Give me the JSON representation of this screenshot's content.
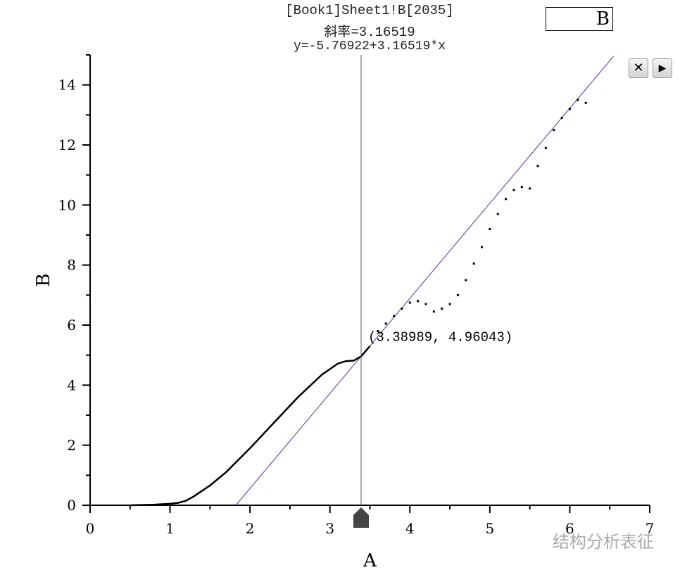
{
  "header": {
    "source": "[Book1]Sheet1!B[2035]",
    "slope": "斜率=3.16519",
    "equation": "y=-5.76922+3.16519*x"
  },
  "legend": {
    "label": "B"
  },
  "buttons": {
    "close": "✕",
    "next": "▶"
  },
  "cursor": {
    "x": 3.38989,
    "y": 4.96043,
    "label": "(3.38989, 4.96043)"
  },
  "watermark": "结构分析表征",
  "colors": {
    "data": "#000000",
    "fit_line": "#5a2d9c",
    "cursor": "#555555"
  },
  "chart_data": {
    "type": "line",
    "xlabel": "A",
    "ylabel": "B",
    "xlim": [
      0,
      7
    ],
    "ylim": [
      0,
      15
    ],
    "xticks": [
      0,
      1,
      2,
      3,
      4,
      5,
      6,
      7
    ],
    "yticks": [
      0,
      2,
      4,
      6,
      8,
      10,
      12,
      14
    ],
    "grid": false,
    "legend": "top-right",
    "series": [
      {
        "name": "B",
        "style": "solid",
        "x": [
          0.5,
          0.8,
          1.0,
          1.1,
          1.2,
          1.3,
          1.5,
          1.7,
          2.0,
          2.3,
          2.6,
          2.9,
          3.1,
          3.2,
          3.3,
          3.39,
          3.5
        ],
        "y": [
          0.0,
          0.02,
          0.05,
          0.08,
          0.15,
          0.3,
          0.66,
          1.1,
          1.9,
          2.75,
          3.6,
          4.35,
          4.72,
          4.8,
          4.82,
          4.96,
          5.3
        ]
      },
      {
        "name": "B",
        "style": "dotted",
        "x": [
          3.6,
          3.7,
          3.8,
          3.9,
          4.0,
          4.1,
          4.2,
          4.3,
          4.4,
          4.5,
          4.6,
          4.7,
          4.8,
          4.9,
          5.0,
          5.1,
          5.2,
          5.3,
          5.4,
          5.5,
          5.6,
          5.7,
          5.8,
          5.9,
          6.0,
          6.1,
          6.2
        ],
        "y": [
          5.8,
          6.05,
          6.3,
          6.55,
          6.75,
          6.8,
          6.7,
          6.45,
          6.55,
          6.7,
          7.0,
          7.5,
          8.05,
          8.6,
          9.2,
          9.7,
          10.2,
          10.5,
          10.6,
          10.55,
          11.3,
          11.9,
          12.5,
          12.9,
          13.2,
          13.5,
          13.4
        ]
      }
    ],
    "fit": {
      "intercept": -5.76922,
      "slope": 3.16519
    }
  }
}
